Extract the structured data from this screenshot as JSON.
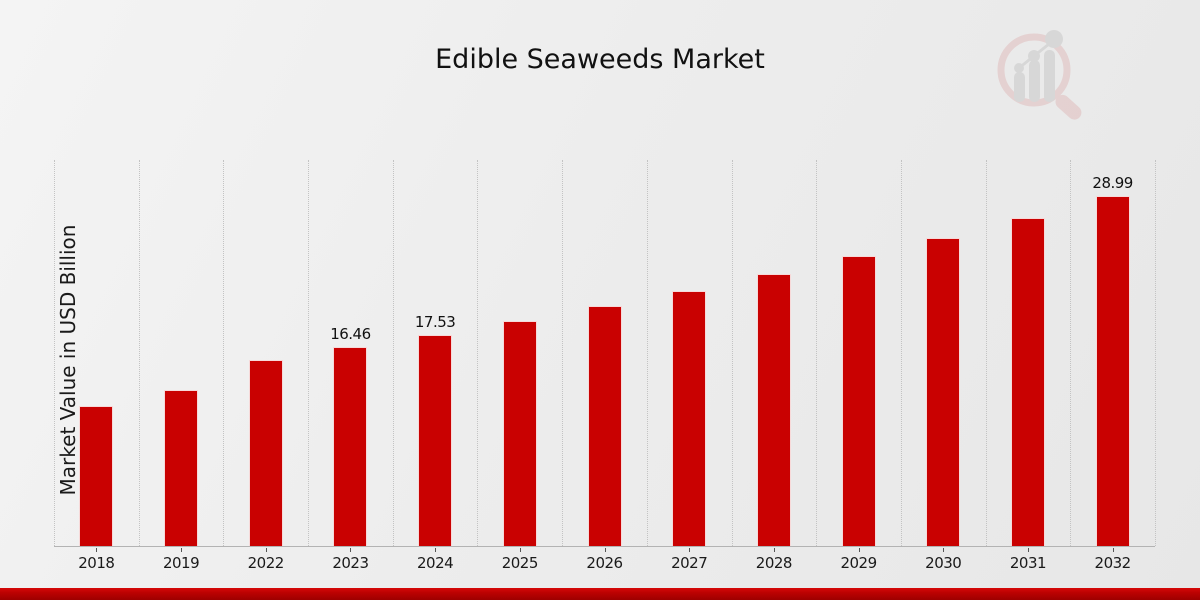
{
  "page": {
    "title": "Edible Seaweeds Market"
  },
  "chart_data": {
    "type": "bar",
    "title": "Edible Seaweeds Market",
    "xlabel": "",
    "ylabel": "Market Value in USD Billion",
    "categories": [
      "2018",
      "2019",
      "2022",
      "2023",
      "2024",
      "2025",
      "2026",
      "2027",
      "2028",
      "2029",
      "2030",
      "2031",
      "2032"
    ],
    "values": [
      11.63,
      12.9,
      15.45,
      16.46,
      17.53,
      18.67,
      19.88,
      21.17,
      22.55,
      24.01,
      25.57,
      27.23,
      28.99
    ],
    "data_labels": [
      null,
      null,
      null,
      "16.46",
      "17.53",
      null,
      null,
      null,
      null,
      null,
      null,
      null,
      "28.99"
    ],
    "ylim": [
      0,
      32
    ],
    "grid": "vertical-dotted",
    "legend": "none",
    "bar_color": "#c90101",
    "gridline_color": "#c3c3c3",
    "note": "values without data_labels are estimated from bar pixel heights"
  },
  "branding": {
    "logo_name": "market-research-future-watermark",
    "logo_ring_color": "#dfb9b9",
    "logo_bars_color": "#c6c6c6",
    "footer_color": "#bb0202"
  }
}
